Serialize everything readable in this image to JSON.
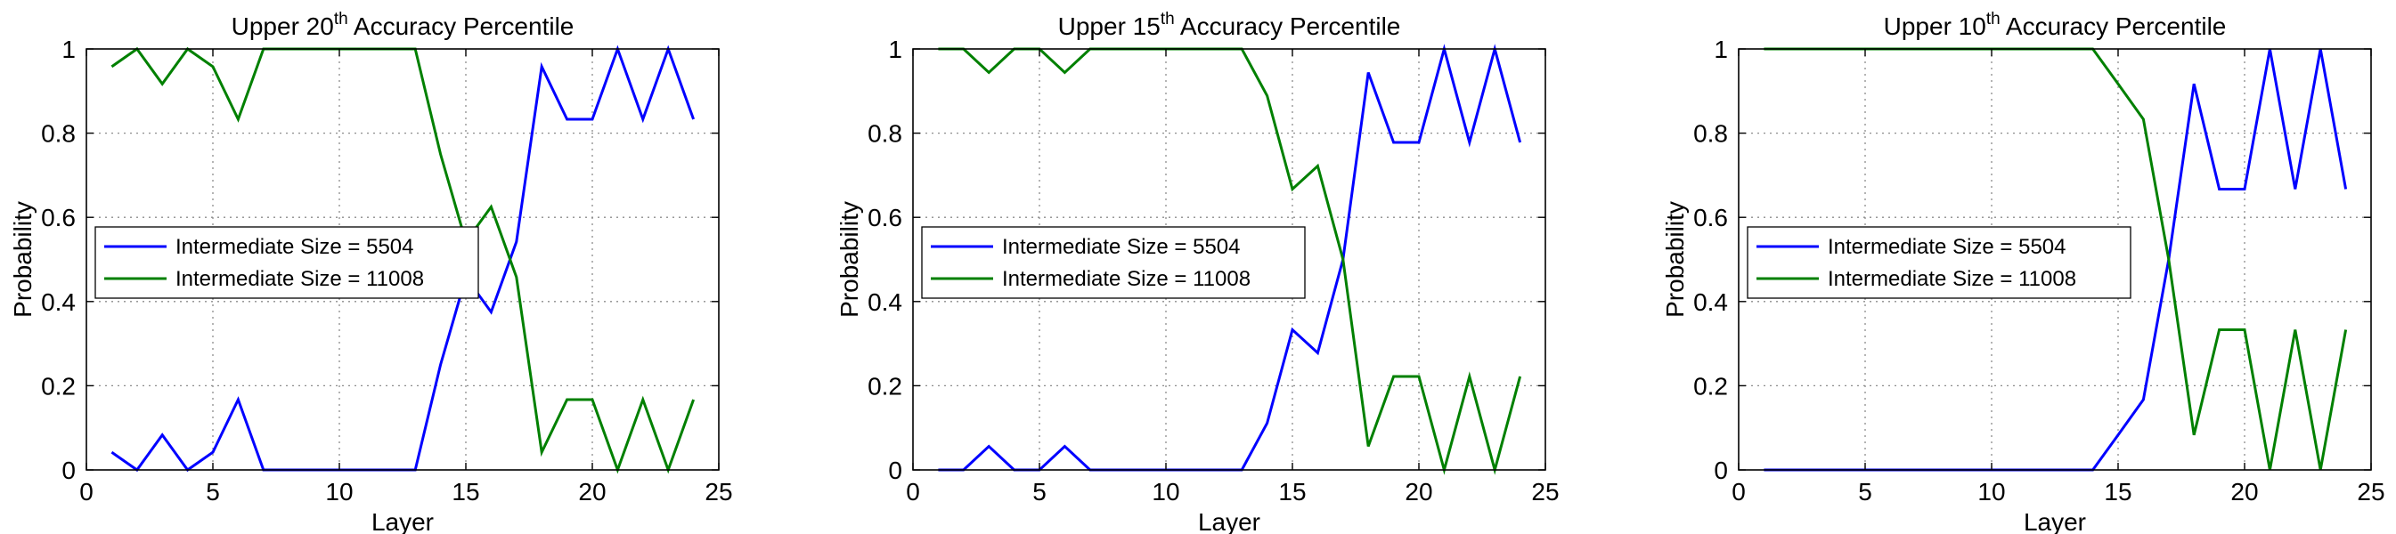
{
  "chart_data": [
    {
      "type": "line",
      "title_parts": {
        "pre": "Upper 20",
        "sup": "th",
        "post": " Accuracy Percentile"
      },
      "xlabel": "Layer",
      "ylabel": "Probability",
      "xlim": [
        0,
        25
      ],
      "ylim": [
        0,
        1
      ],
      "xticks": [
        0,
        5,
        10,
        15,
        20,
        25
      ],
      "yticks": [
        0,
        0.2,
        0.4,
        0.6,
        0.8,
        1
      ],
      "xtick_labels": [
        "0",
        "5",
        "10",
        "15",
        "20",
        "25"
      ],
      "ytick_labels": [
        "0",
        "0.2",
        "0.4",
        "0.6",
        "0.8",
        "1"
      ],
      "grid": true,
      "legend": "center-left",
      "x": [
        1,
        2,
        3,
        4,
        5,
        6,
        7,
        8,
        9,
        10,
        11,
        12,
        13,
        14,
        15,
        16,
        17,
        18,
        19,
        20,
        21,
        22,
        23,
        24
      ],
      "series": [
        {
          "name": "Intermediate Size = 5504",
          "color": "#0000ff",
          "values": [
            0.042,
            0,
            0.083,
            0,
            0.042,
            0.167,
            0,
            0,
            0,
            0,
            0,
            0,
            0,
            0.25,
            0.458,
            0.375,
            0.542,
            0.958,
            0.833,
            0.833,
            1,
            0.833,
            1,
            0.833
          ]
        },
        {
          "name": "Intermediate Size = 11008",
          "color": "#008000",
          "values": [
            0.958,
            1,
            0.917,
            1,
            0.958,
            0.833,
            1,
            1,
            1,
            1,
            1,
            1,
            1,
            0.75,
            0.542,
            0.625,
            0.458,
            0.042,
            0.167,
            0.167,
            0,
            0.167,
            0,
            0.167
          ]
        }
      ]
    },
    {
      "type": "line",
      "title_parts": {
        "pre": "Upper 15",
        "sup": "th",
        "post": " Accuracy Percentile"
      },
      "xlabel": "Layer",
      "ylabel": "Probability",
      "xlim": [
        0,
        25
      ],
      "ylim": [
        0,
        1
      ],
      "xticks": [
        0,
        5,
        10,
        15,
        20,
        25
      ],
      "yticks": [
        0,
        0.2,
        0.4,
        0.6,
        0.8,
        1
      ],
      "xtick_labels": [
        "0",
        "5",
        "10",
        "15",
        "20",
        "25"
      ],
      "ytick_labels": [
        "0",
        "0.2",
        "0.4",
        "0.6",
        "0.8",
        "1"
      ],
      "grid": true,
      "legend": "center-left",
      "x": [
        1,
        2,
        3,
        4,
        5,
        6,
        7,
        8,
        9,
        10,
        11,
        12,
        13,
        14,
        15,
        16,
        17,
        18,
        19,
        20,
        21,
        22,
        23,
        24
      ],
      "series": [
        {
          "name": "Intermediate Size = 5504",
          "color": "#0000ff",
          "values": [
            0,
            0,
            0.056,
            0,
            0,
            0.056,
            0,
            0,
            0,
            0,
            0,
            0,
            0,
            0.111,
            0.333,
            0.278,
            0.5,
            0.944,
            0.778,
            0.778,
            1,
            0.778,
            1,
            0.778
          ]
        },
        {
          "name": "Intermediate Size = 11008",
          "color": "#008000",
          "values": [
            1,
            1,
            0.944,
            1,
            1,
            0.944,
            1,
            1,
            1,
            1,
            1,
            1,
            1,
            0.889,
            0.667,
            0.722,
            0.5,
            0.056,
            0.222,
            0.222,
            0,
            0.222,
            0,
            0.222
          ]
        }
      ]
    },
    {
      "type": "line",
      "title_parts": {
        "pre": "Upper 10",
        "sup": "th",
        "post": " Accuracy Percentile"
      },
      "xlabel": "Layer",
      "ylabel": "Probability",
      "xlim": [
        0,
        25
      ],
      "ylim": [
        0,
        1
      ],
      "xticks": [
        0,
        5,
        10,
        15,
        20,
        25
      ],
      "yticks": [
        0,
        0.2,
        0.4,
        0.6,
        0.8,
        1
      ],
      "xtick_labels": [
        "0",
        "5",
        "10",
        "15",
        "20",
        "25"
      ],
      "ytick_labels": [
        "0",
        "0.2",
        "0.4",
        "0.6",
        "0.8",
        "1"
      ],
      "grid": true,
      "legend": "center-left",
      "x": [
        1,
        2,
        3,
        4,
        5,
        6,
        7,
        8,
        9,
        10,
        11,
        12,
        13,
        14,
        15,
        16,
        17,
        18,
        19,
        20,
        21,
        22,
        23,
        24
      ],
      "series": [
        {
          "name": "Intermediate Size = 5504",
          "color": "#0000ff",
          "values": [
            0,
            0,
            0,
            0,
            0,
            0,
            0,
            0,
            0,
            0,
            0,
            0,
            0,
            0,
            0.083,
            0.167,
            0.5,
            0.917,
            0.667,
            0.667,
            1,
            0.667,
            1,
            0.667
          ]
        },
        {
          "name": "Intermediate Size = 11008",
          "color": "#008000",
          "values": [
            1,
            1,
            1,
            1,
            1,
            1,
            1,
            1,
            1,
            1,
            1,
            1,
            1,
            1,
            0.917,
            0.833,
            0.5,
            0.083,
            0.333,
            0.333,
            0,
            0.333,
            0,
            0.333
          ]
        }
      ]
    }
  ]
}
